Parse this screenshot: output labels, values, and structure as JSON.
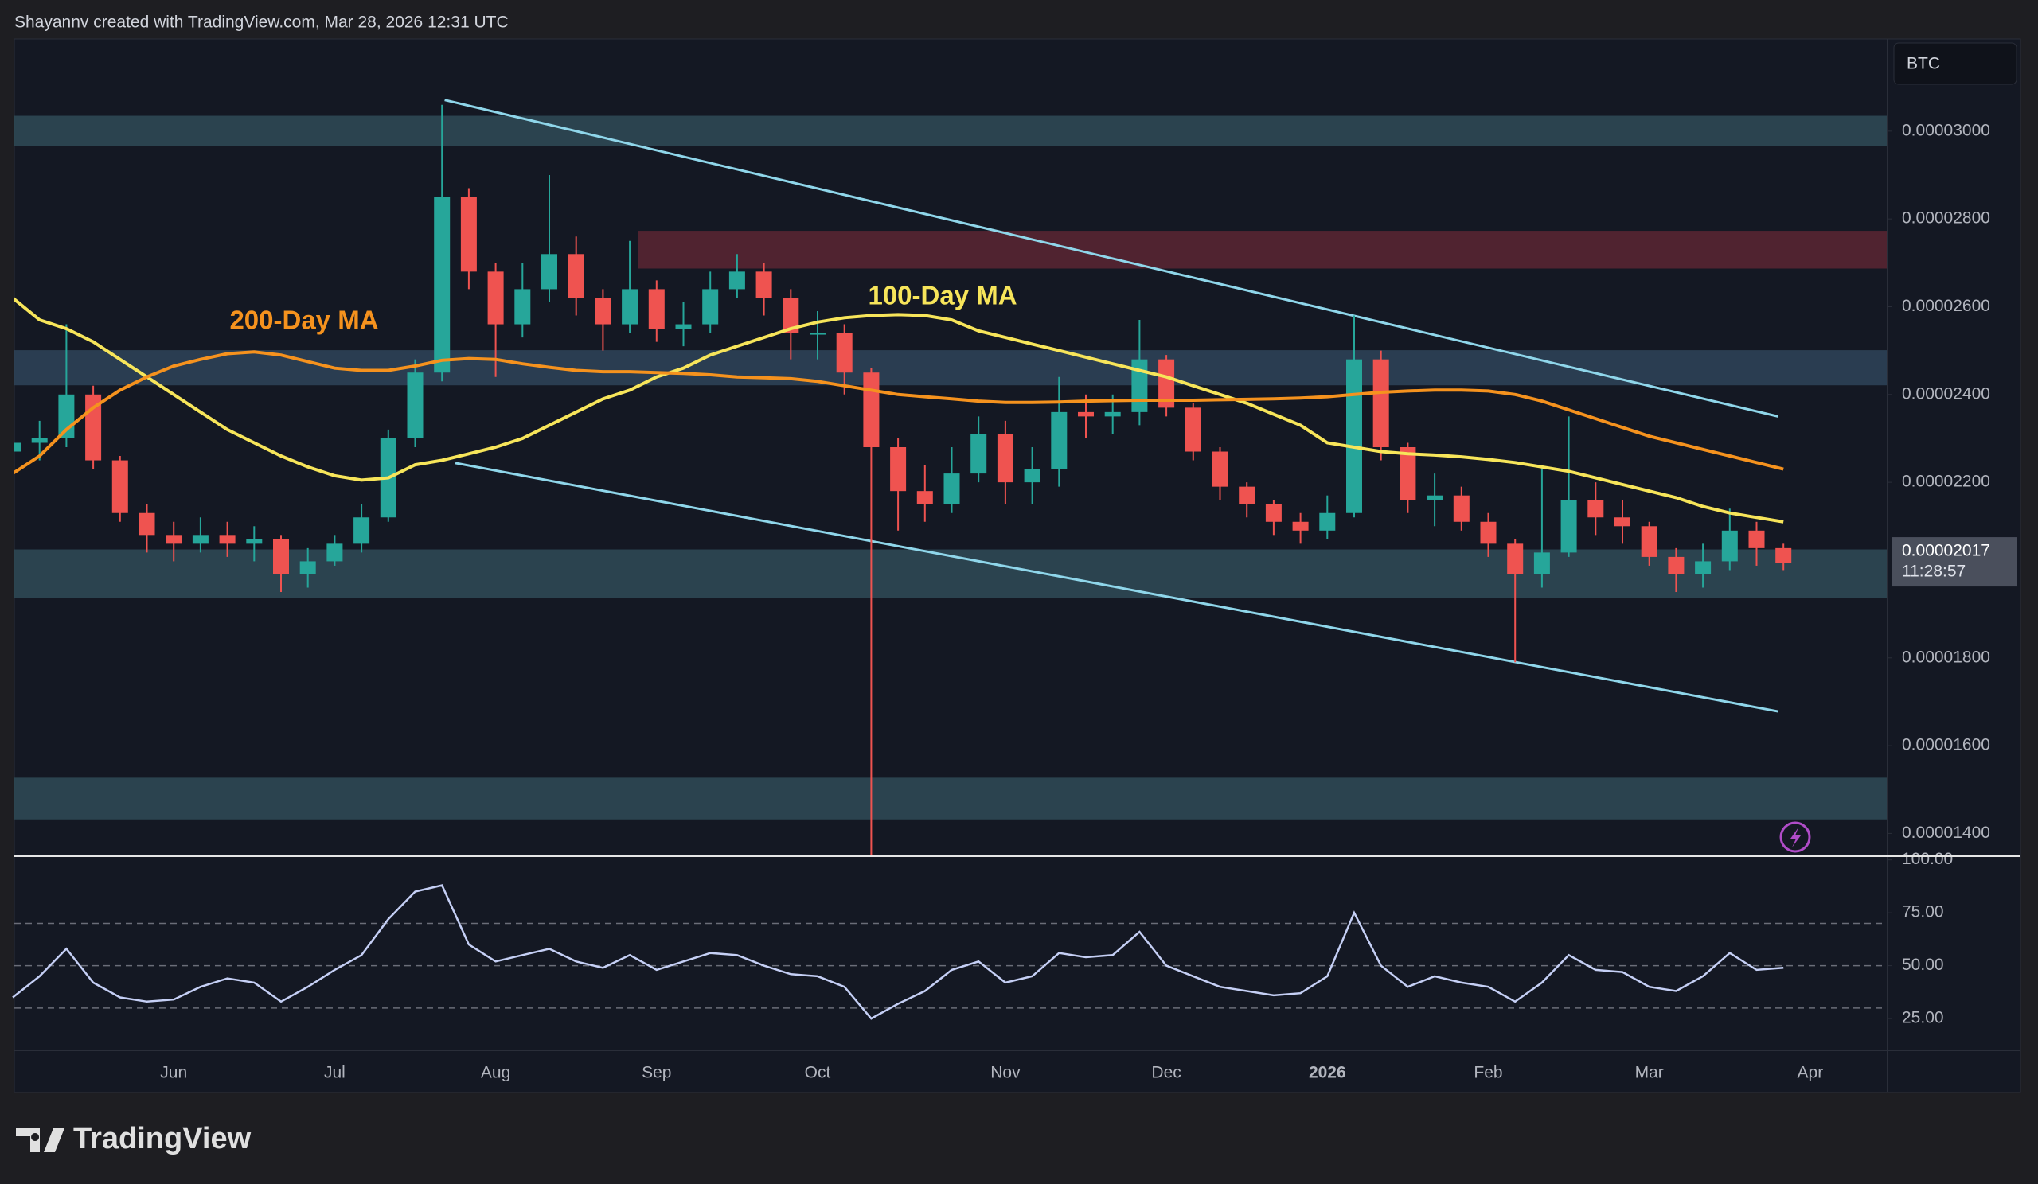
{
  "header": "Shayannv created with TradingView.com, Mar 28, 2026 12:31 UTC",
  "footer_logo": "TradingView",
  "chart_data": {
    "type": "candlestick",
    "symbol": "BTC",
    "categories": [
      null,
      null,
      null,
      null,
      null,
      null,
      "Jun",
      null,
      null,
      null,
      null,
      null,
      "Jul",
      null,
      null,
      null,
      null,
      null,
      "Aug",
      null,
      null,
      null,
      null,
      null,
      "Sep",
      null,
      null,
      null,
      null,
      null,
      "Oct",
      null,
      null,
      null,
      null,
      null,
      null,
      "Nov",
      null,
      null,
      null,
      null,
      null,
      "Dec",
      null,
      null,
      null,
      null,
      null,
      "2026",
      null,
      null,
      null,
      null,
      null,
      "Feb",
      null,
      null,
      null,
      null,
      null,
      "Mar",
      null,
      null,
      null,
      null,
      null,
      "Apr"
    ],
    "candles": {
      "open": [
        2.27e-05,
        2.29e-05,
        2.3e-05,
        2.4e-05,
        2.25e-05,
        2.13e-05,
        2.08e-05,
        2.06e-05,
        2.08e-05,
        2.06e-05,
        2.07e-05,
        1.99e-05,
        2.02e-05,
        2.06e-05,
        2.12e-05,
        2.3e-05,
        2.45e-05,
        2.85e-05,
        2.68e-05,
        2.56e-05,
        2.64e-05,
        2.72e-05,
        2.62e-05,
        2.56e-05,
        2.64e-05,
        2.55e-05,
        2.56e-05,
        2.64e-05,
        2.68e-05,
        2.62e-05,
        2.54e-05,
        2.54e-05,
        2.45e-05,
        2.28e-05,
        2.18e-05,
        2.15e-05,
        2.22e-05,
        2.31e-05,
        2.2e-05,
        2.23e-05,
        2.36e-05,
        2.35e-05,
        2.36e-05,
        2.48e-05,
        2.37e-05,
        2.27e-05,
        2.19e-05,
        2.15e-05,
        2.11e-05,
        2.09e-05,
        2.13e-05,
        2.48e-05,
        2.28e-05,
        2.16e-05,
        2.17e-05,
        2.11e-05,
        2.06e-05,
        1.99e-05,
        2.04e-05,
        2.16e-05,
        2.12e-05,
        2.1e-05,
        2.03e-05,
        1.99e-05,
        2.02e-05,
        2.09e-05,
        2.05e-05,
        null
      ],
      "high": [
        2.33e-05,
        2.34e-05,
        2.56e-05,
        2.42e-05,
        2.26e-05,
        2.15e-05,
        2.11e-05,
        2.12e-05,
        2.11e-05,
        2.1e-05,
        2.08e-05,
        2.05e-05,
        2.08e-05,
        2.15e-05,
        2.32e-05,
        2.48e-05,
        3.06e-05,
        2.87e-05,
        2.7e-05,
        2.7e-05,
        2.9e-05,
        2.76e-05,
        2.64e-05,
        2.75e-05,
        2.66e-05,
        2.61e-05,
        2.68e-05,
        2.72e-05,
        2.7e-05,
        2.64e-05,
        2.59e-05,
        2.56e-05,
        2.46e-05,
        2.3e-05,
        2.24e-05,
        2.28e-05,
        2.35e-05,
        2.34e-05,
        2.28e-05,
        2.44e-05,
        2.4e-05,
        2.4e-05,
        2.57e-05,
        2.49e-05,
        2.38e-05,
        2.28e-05,
        2.2e-05,
        2.16e-05,
        2.13e-05,
        2.17e-05,
        2.58e-05,
        2.5e-05,
        2.29e-05,
        2.22e-05,
        2.19e-05,
        2.13e-05,
        2.07e-05,
        2.24e-05,
        2.35e-05,
        2.2e-05,
        2.16e-05,
        2.11e-05,
        2.05e-05,
        2.06e-05,
        2.14e-05,
        2.11e-05,
        2.06e-05,
        null
      ],
      "low": [
        2.24e-05,
        2.25e-05,
        2.28e-05,
        2.23e-05,
        2.11e-05,
        2.04e-05,
        2.02e-05,
        2.04e-05,
        2.03e-05,
        2.02e-05,
        1.95e-05,
        1.96e-05,
        2.01e-05,
        2.04e-05,
        2.11e-05,
        2.28e-05,
        2.43e-05,
        2.64e-05,
        2.44e-05,
        2.53e-05,
        2.61e-05,
        2.58e-05,
        2.5e-05,
        2.54e-05,
        2.52e-05,
        2.51e-05,
        2.54e-05,
        2.62e-05,
        2.58e-05,
        2.48e-05,
        2.48e-05,
        2.4e-05,
        1.35e-05,
        2.09e-05,
        2.11e-05,
        2.13e-05,
        2.2e-05,
        2.15e-05,
        2.15e-05,
        2.19e-05,
        2.3e-05,
        2.31e-05,
        2.33e-05,
        2.35e-05,
        2.25e-05,
        2.16e-05,
        2.12e-05,
        2.08e-05,
        2.06e-05,
        2.07e-05,
        2.12e-05,
        2.25e-05,
        2.13e-05,
        2.1e-05,
        2.09e-05,
        2.03e-05,
        1.79e-05,
        1.96e-05,
        2.03e-05,
        2.08e-05,
        2.06e-05,
        2.01e-05,
        1.95e-05,
        1.96e-05,
        2e-05,
        2.01e-05,
        2e-05,
        null
      ],
      "close": [
        2.29e-05,
        2.3e-05,
        2.4e-05,
        2.25e-05,
        2.13e-05,
        2.08e-05,
        2.06e-05,
        2.08e-05,
        2.06e-05,
        2.07e-05,
        1.99e-05,
        2.02e-05,
        2.06e-05,
        2.12e-05,
        2.3e-05,
        2.45e-05,
        2.85e-05,
        2.68e-05,
        2.56e-05,
        2.64e-05,
        2.72e-05,
        2.62e-05,
        2.56e-05,
        2.64e-05,
        2.55e-05,
        2.56e-05,
        2.64e-05,
        2.68e-05,
        2.62e-05,
        2.54e-05,
        2.54e-05,
        2.45e-05,
        2.28e-05,
        2.18e-05,
        2.15e-05,
        2.22e-05,
        2.31e-05,
        2.2e-05,
        2.23e-05,
        2.36e-05,
        2.35e-05,
        2.36e-05,
        2.48e-05,
        2.37e-05,
        2.27e-05,
        2.19e-05,
        2.15e-05,
        2.11e-05,
        2.09e-05,
        2.13e-05,
        2.48e-05,
        2.28e-05,
        2.16e-05,
        2.17e-05,
        2.11e-05,
        2.06e-05,
        1.99e-05,
        2.04e-05,
        2.16e-05,
        2.12e-05,
        2.1e-05,
        2.03e-05,
        1.99e-05,
        2.02e-05,
        2.09e-05,
        2.05e-05,
        2.017e-05,
        null
      ],
      "up_color": "#26a69a",
      "down_color": "#ef5350"
    },
    "series": [
      {
        "name": "100-Day MA",
        "color": "#f7e55a",
        "values": [
          2.62e-05,
          2.57e-05,
          2.55e-05,
          2.52e-05,
          2.48e-05,
          2.44e-05,
          2.4e-05,
          2.36e-05,
          2.32e-05,
          2.29e-05,
          2.26e-05,
          2.235e-05,
          2.215e-05,
          2.205e-05,
          2.21e-05,
          2.24e-05,
          2.25e-05,
          2.265e-05,
          2.28e-05,
          2.3e-05,
          2.33e-05,
          2.36e-05,
          2.39e-05,
          2.41e-05,
          2.44e-05,
          2.46e-05,
          2.49e-05,
          2.51e-05,
          2.53e-05,
          2.55e-05,
          2.565e-05,
          2.575e-05,
          2.58e-05,
          2.582e-05,
          2.58e-05,
          2.57e-05,
          2.545e-05,
          2.53e-05,
          2.515e-05,
          2.5e-05,
          2.485e-05,
          2.47e-05,
          2.455e-05,
          2.44e-05,
          2.42e-05,
          2.4e-05,
          2.38e-05,
          2.355e-05,
          2.33e-05,
          2.29e-05,
          2.28e-05,
          2.27e-05,
          2.265e-05,
          2.262e-05,
          2.258e-05,
          2.252e-05,
          2.245e-05,
          2.235e-05,
          2.225e-05,
          2.21e-05,
          2.195e-05,
          2.18e-05,
          2.165e-05,
          2.145e-05,
          2.13e-05,
          2.12e-05,
          2.11e-05,
          null
        ]
      },
      {
        "name": "200-Day MA",
        "color": "#f5921e",
        "values": [
          2.22e-05,
          2.26e-05,
          2.32e-05,
          2.37e-05,
          2.41e-05,
          2.44e-05,
          2.465e-05,
          2.48e-05,
          2.493e-05,
          2.497e-05,
          2.49e-05,
          2.475e-05,
          2.46e-05,
          2.455e-05,
          2.455e-05,
          2.465e-05,
          2.478e-05,
          2.482e-05,
          2.48e-05,
          2.47e-05,
          2.462e-05,
          2.455e-05,
          2.452e-05,
          2.452e-05,
          2.45e-05,
          2.448e-05,
          2.445e-05,
          2.44e-05,
          2.438e-05,
          2.436e-05,
          2.43e-05,
          2.42e-05,
          2.41e-05,
          2.4e-05,
          2.395e-05,
          2.39e-05,
          2.385e-05,
          2.382e-05,
          2.382e-05,
          2.383e-05,
          2.385e-05,
          2.386e-05,
          2.387e-05,
          2.387e-05,
          2.387e-05,
          2.388e-05,
          2.389e-05,
          2.39e-05,
          2.392e-05,
          2.395e-05,
          2.4e-05,
          2.405e-05,
          2.408e-05,
          2.41e-05,
          2.41e-05,
          2.408e-05,
          2.4e-05,
          2.385e-05,
          2.365e-05,
          2.345e-05,
          2.325e-05,
          2.305e-05,
          2.29e-05,
          2.275e-05,
          2.26e-05,
          2.245e-05,
          2.23e-05,
          null
        ]
      }
    ],
    "zones": [
      {
        "y": [
          2.967e-05,
          3.035e-05
        ],
        "color": "#2f4b57"
      },
      {
        "y": [
          2.687e-05,
          2.773e-05
        ],
        "color": "#5b2632",
        "x_start": 23.3
      },
      {
        "y": [
          2.421e-05,
          2.501e-05
        ],
        "color": "#2e4459"
      },
      {
        "y": [
          1.937e-05,
          2.047e-05
        ],
        "color": "#2f4b57"
      },
      {
        "y": [
          1.432e-05,
          1.527e-05
        ],
        "color": "#2f4b57"
      }
    ],
    "trendlines": [
      {
        "x": [
          16.1,
          65.8
        ],
        "y": [
          3.071e-05,
          2.35e-05
        ],
        "color": "#8fd6ea"
      },
      {
        "x": [
          16.5,
          65.8
        ],
        "y": [
          2.244e-05,
          1.678e-05
        ],
        "color": "#8fd6ea"
      }
    ],
    "ylim": [
      1.35e-05,
      3.21e-05
    ],
    "yticks": [
      {
        "value": 3e-05,
        "label": "0.00003000"
      },
      {
        "value": 2.8e-05,
        "label": "0.00002800"
      },
      {
        "value": 2.6e-05,
        "label": "0.00002600"
      },
      {
        "value": 2.4e-05,
        "label": "0.00002400"
      },
      {
        "value": 2.2e-05,
        "label": "0.00002200"
      },
      {
        "value": 1.8e-05,
        "label": "0.00001800"
      },
      {
        "value": 1.6e-05,
        "label": "0.00001600"
      },
      {
        "value": 1.4e-05,
        "label": "0.00001400"
      }
    ],
    "last_price": {
      "value": 2.017e-05,
      "label": "0.00002017"
    },
    "countdown": "11:28:57",
    "rsi": {
      "color": "#c5cff5",
      "values": [
        35,
        45,
        58,
        42,
        35,
        33,
        34,
        40,
        44,
        42,
        33,
        40,
        48,
        55,
        72,
        85,
        88,
        60,
        52,
        55,
        58,
        52,
        49,
        55,
        48,
        52,
        56,
        55,
        50,
        46,
        45,
        40,
        25,
        32,
        38,
        48,
        52,
        42,
        45,
        56,
        54,
        55,
        66,
        50,
        45,
        40,
        38,
        36,
        37,
        45,
        75,
        50,
        40,
        45,
        42,
        40,
        33,
        42,
        55,
        48,
        47,
        40,
        38,
        45,
        56,
        48,
        49,
        null
      ],
      "ylim": [
        10,
        101
      ],
      "yticks": [
        {
          "value": 100,
          "label": "100.00"
        },
        {
          "value": 75,
          "label": "75.00"
        },
        {
          "value": 50,
          "label": "50.00"
        },
        {
          "value": 25,
          "label": "25.00"
        }
      ],
      "levels": [
        30,
        50,
        70
      ]
    }
  }
}
